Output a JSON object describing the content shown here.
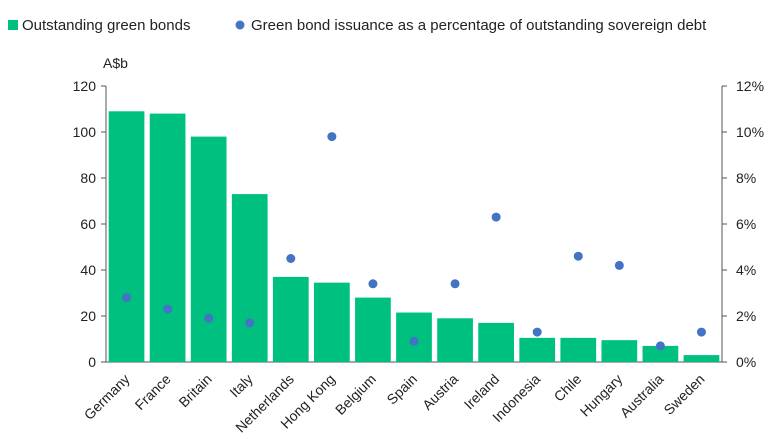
{
  "chart_data": {
    "type": "bar",
    "title": "",
    "categories": [
      "Germany",
      "France",
      "Britain",
      "Italy",
      "Netherlands",
      "Hong Kong",
      "Belgium",
      "Spain",
      "Austria",
      "Ireland",
      "Indonesia",
      "Chile",
      "Hungary",
      "Australia",
      "Sweden"
    ],
    "series": [
      {
        "name": "Outstanding green bonds",
        "type": "bar",
        "axis": "left",
        "color": "#00c07f",
        "values": [
          109,
          108,
          98,
          73,
          37,
          34.5,
          28,
          21.5,
          19,
          17,
          10.5,
          10.5,
          9.5,
          7,
          3
        ]
      },
      {
        "name": "Green bond issuance as a percentage of outstanding sovereign debt",
        "type": "scatter",
        "axis": "right",
        "color": "#4472c4",
        "values": [
          2.8,
          2.3,
          1.9,
          1.7,
          4.5,
          9.8,
          3.4,
          0.9,
          3.4,
          6.3,
          1.3,
          4.6,
          4.2,
          0.7,
          1.3
        ]
      }
    ],
    "yleft": {
      "label": "A$b",
      "lim": [
        0,
        120
      ],
      "ticks": [
        "0",
        "20",
        "40",
        "60",
        "80",
        "100",
        "120"
      ]
    },
    "yright": {
      "label": "",
      "lim": [
        0,
        12
      ],
      "ticks": [
        "0%",
        "2%",
        "4%",
        "6%",
        "8%",
        "10%",
        "12%"
      ]
    },
    "legend": {
      "position": "top",
      "items": [
        {
          "label": "Outstanding green bonds",
          "marker": "square",
          "color": "#00c07f"
        },
        {
          "label": "Green bond issuance as a percentage of outstanding sovereign debt",
          "marker": "circle",
          "color": "#4472c4"
        }
      ]
    },
    "grid": false
  }
}
